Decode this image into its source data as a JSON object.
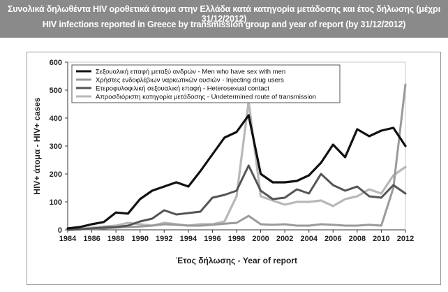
{
  "titles": {
    "greek": "Συνολικά δηλωθέντα HIV οροθετικά άτομα στην Ελλάδα κατά κατηγορία μετάδοσης και έτος δήλωσης (μέχρι 31/12/2012)",
    "english": "HIV infections reported in Greece by transmission group and year of report (by 31/12/2012)"
  },
  "chart_data": {
    "type": "line",
    "title": "HIV infections reported in Greece by transmission group and year of report (by 31/12/2012)",
    "xlabel": "Έτος δήλωσης - Year of report",
    "ylabel": "HIV+ άτομα - HIV+ cases",
    "x": [
      1984,
      1985,
      1986,
      1987,
      1988,
      1989,
      1990,
      1991,
      1992,
      1993,
      1994,
      1995,
      1996,
      1997,
      1998,
      1999,
      2000,
      2001,
      2002,
      2003,
      2004,
      2005,
      2006,
      2007,
      2008,
      2009,
      2010,
      2011,
      2012
    ],
    "xticks": [
      "1984",
      "1986",
      "1988",
      "1990",
      "1992",
      "1994",
      "1996",
      "1998",
      "2000",
      "2002",
      "2004",
      "2006",
      "2008",
      "2010",
      "2012"
    ],
    "yticks": [
      "0",
      "100",
      "200",
      "300",
      "400",
      "500",
      "600"
    ],
    "ylim": [
      0,
      600
    ],
    "grid": false,
    "legend_position": "top-left",
    "series": [
      {
        "name": "Σεξουαλική επαφή μεταξύ ανδρών - Men who have sex with men",
        "color": "#111111",
        "values": [
          5,
          10,
          20,
          28,
          62,
          58,
          110,
          140,
          155,
          170,
          155,
          210,
          270,
          330,
          350,
          410,
          200,
          170,
          170,
          175,
          195,
          240,
          305,
          260,
          360,
          335,
          355,
          365,
          300
        ]
      },
      {
        "name": "Χρήστες ενδοφλέβιων ναρκωτικών ουσιών - Injecting drug users",
        "color": "#9a9a9a",
        "values": [
          0,
          2,
          3,
          5,
          8,
          10,
          12,
          15,
          20,
          18,
          15,
          15,
          18,
          22,
          25,
          50,
          20,
          18,
          20,
          15,
          15,
          20,
          18,
          15,
          15,
          18,
          15,
          150,
          520
        ]
      },
      {
        "name": "Ετεροφυλοφιλική σεξουαλική επαφή - Heterosexual contact",
        "color": "#555555",
        "values": [
          0,
          2,
          5,
          8,
          10,
          15,
          30,
          40,
          70,
          55,
          60,
          65,
          115,
          125,
          140,
          230,
          140,
          110,
          115,
          145,
          130,
          200,
          160,
          140,
          155,
          120,
          115,
          160,
          130
        ]
      },
      {
        "name": "Απροσδιόριστη κατηγορία μετάδοσης - Undetermined route of transmission",
        "color": "#b8b8b8",
        "values": [
          2,
          5,
          8,
          12,
          15,
          25,
          20,
          15,
          25,
          20,
          15,
          20,
          20,
          30,
          120,
          460,
          120,
          105,
          90,
          100,
          100,
          105,
          85,
          110,
          120,
          145,
          130,
          195,
          225
        ]
      }
    ]
  }
}
